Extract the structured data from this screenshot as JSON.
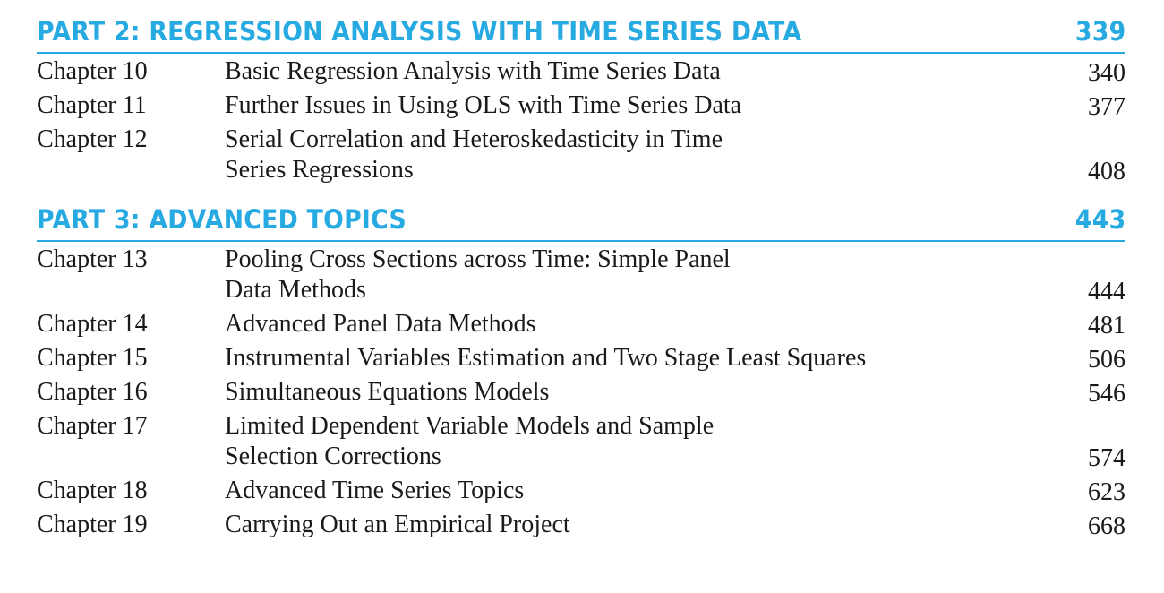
{
  "parts": [
    {
      "title": "PART 2: REGRESSION ANALYSIS WITH TIME SERIES DATA",
      "page": "339",
      "chapters": [
        {
          "label": "Chapter 10",
          "lines": [
            "Basic Regression Analysis with Time Series Data"
          ],
          "page": "340"
        },
        {
          "label": "Chapter 11",
          "lines": [
            "Further Issues in Using OLS with Time Series Data"
          ],
          "page": "377"
        },
        {
          "label": "Chapter 12",
          "lines": [
            "Serial Correlation and Heteroskedasticity in Time",
            "Series Regressions"
          ],
          "page": "408"
        }
      ]
    },
    {
      "title": "PART 3: ADVANCED TOPICS",
      "page": "443",
      "chapters": [
        {
          "label": "Chapter 13",
          "lines": [
            "Pooling Cross Sections across Time: Simple Panel",
            "Data Methods"
          ],
          "page": "444"
        },
        {
          "label": "Chapter 14",
          "lines": [
            "Advanced Panel Data Methods"
          ],
          "page": "481"
        },
        {
          "label": "Chapter 15",
          "lines": [
            "Instrumental Variables Estimation and Two Stage Least Squares"
          ],
          "page": "506"
        },
        {
          "label": "Chapter 16",
          "lines": [
            "Simultaneous Equations Models"
          ],
          "page": "546"
        },
        {
          "label": "Chapter 17",
          "lines": [
            "Limited Dependent Variable Models and Sample",
            "Selection Corrections"
          ],
          "page": "574"
        },
        {
          "label": "Chapter 18",
          "lines": [
            "Advanced Time Series Topics"
          ],
          "page": "623"
        },
        {
          "label": "Chapter 19",
          "lines": [
            "Carrying Out an Empirical Project"
          ],
          "page": "668"
        }
      ]
    }
  ],
  "colors": {
    "part_heading": "#27a9e1",
    "body_text": "#1a1a1a"
  }
}
